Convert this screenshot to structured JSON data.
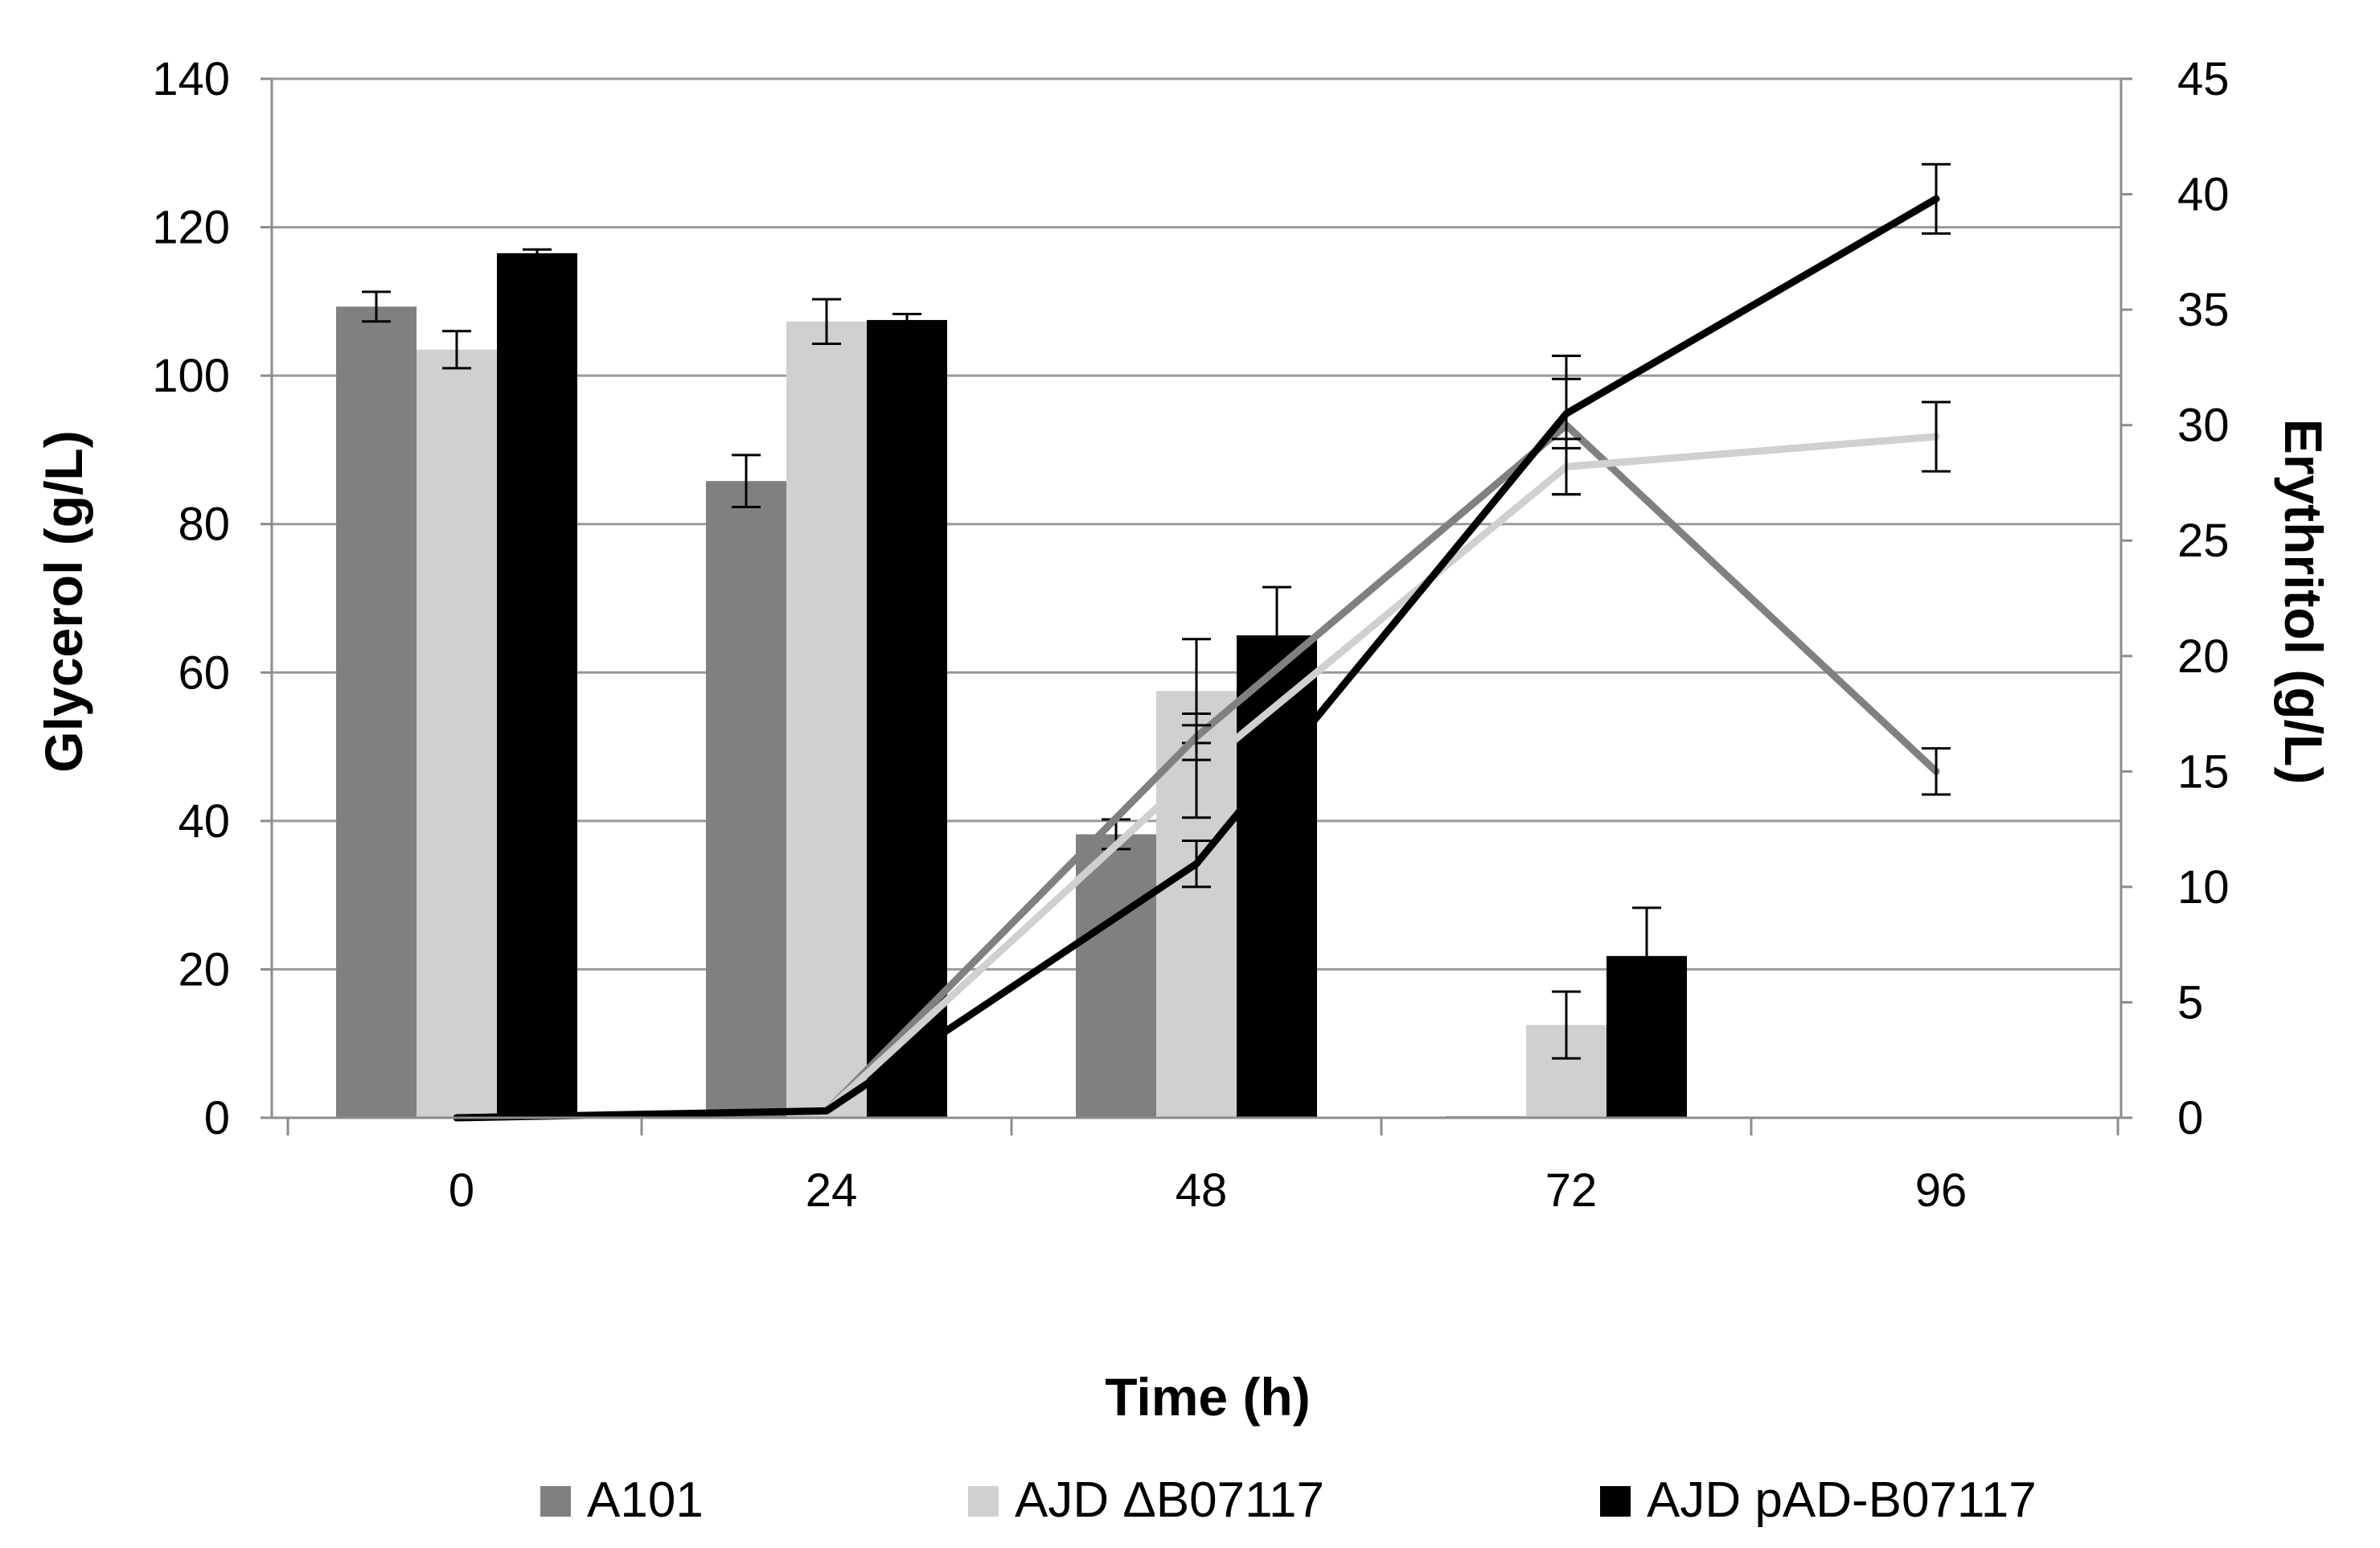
{
  "chart_data": {
    "type": "bar+line",
    "title": "",
    "xlabel": "Time (h)",
    "ylabel": "Glycerol (g/L)",
    "y2label": "Erythritol (g/L)",
    "categories": [
      "0",
      "24",
      "48",
      "72",
      "96"
    ],
    "ylim": [
      0,
      140
    ],
    "y_ticks": [
      "0",
      "20",
      "40",
      "60",
      "80",
      "100",
      "120",
      "140"
    ],
    "y2lim": [
      0,
      45
    ],
    "y2_ticks": [
      "0",
      "5",
      "10",
      "15",
      "20",
      "25",
      "30",
      "35",
      "40",
      "45"
    ],
    "grid": true,
    "legend_position": "bottom",
    "colors": {
      "A101": "#808080",
      "AJD ΔB07117": "#d0d0d0",
      "AJD pAD-B07117": "#000000"
    },
    "bar_series": [
      {
        "name": "A101",
        "axis": "glycerol",
        "values": [
          109.3,
          85.8,
          38.2,
          0.2,
          null
        ],
        "errors": [
          2.0,
          3.5,
          2.0,
          0,
          null
        ]
      },
      {
        "name": "AJD ΔB07117",
        "axis": "glycerol",
        "values": [
          103.5,
          107.3,
          57.5,
          12.5,
          null
        ],
        "errors": [
          2.5,
          3.0,
          7.0,
          4.5,
          null
        ]
      },
      {
        "name": "AJD pAD-B07117",
        "axis": "glycerol",
        "values": [
          116.5,
          107.5,
          65.0,
          21.8,
          null
        ],
        "errors": [
          0.5,
          0.8,
          6.5,
          6.5,
          null
        ]
      }
    ],
    "line_series": [
      {
        "name": "A101",
        "axis": "erythritol",
        "values": [
          null,
          0.3,
          16.5,
          30.0,
          15.0
        ],
        "errors": [
          null,
          0,
          1.0,
          3.0,
          1.0
        ]
      },
      {
        "name": "AJD ΔB07117",
        "axis": "erythritol",
        "values": [
          null,
          0.3,
          15.0,
          28.2,
          29.5
        ],
        "errors": [
          null,
          0,
          2.0,
          1.2,
          1.5
        ]
      },
      {
        "name": "AJD pAD-B07117",
        "axis": "erythritol",
        "values": [
          0,
          0.3,
          11.0,
          30.5,
          39.8
        ],
        "errors": [
          0,
          0,
          1.0,
          1.5,
          1.5
        ]
      }
    ],
    "legend": [
      "A101",
      "AJD ΔB07117",
      "AJD pAD-B07117"
    ]
  }
}
